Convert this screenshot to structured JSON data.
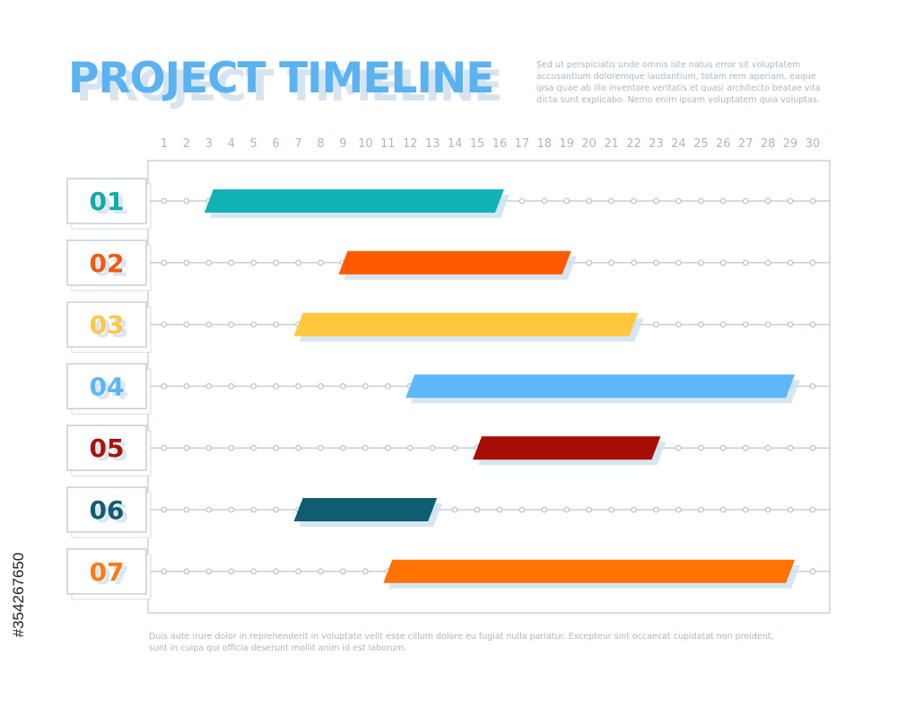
{
  "title": "PROJECT TIMELINE",
  "intro_text": "Sed ut perspiciatis unde omnis iste natus error sit voluptatem accusantium doloremque laudantium, totam rem aperiam, eaque ipsa quae ab illo inventore veritatis et quasi architecto beatae vita dicta sunt explicabo. Nemo enim ipsam voluptatem quia voluptas.",
  "footer_text": "Duis aute irure dolor in reprehenderit in voluptate velit esse cillum dolore eu fugiat nulla pariatur. Excepteur sint occaecat cupidatat non proident, sunt in culpa qui officia deserunt mollit anim id est laborum.",
  "stock_id": "#354267650",
  "chart_data": {
    "type": "bar",
    "orientation": "gantt",
    "x": [
      1,
      2,
      3,
      4,
      5,
      6,
      7,
      8,
      9,
      10,
      11,
      12,
      13,
      14,
      15,
      16,
      17,
      18,
      19,
      20,
      21,
      22,
      23,
      24,
      25,
      26,
      27,
      28,
      29,
      30
    ],
    "xlim": [
      1,
      30
    ],
    "tick_labels": [
      "1",
      "2",
      "3",
      "4",
      "5",
      "6",
      "7",
      "8",
      "9",
      "10",
      "11",
      "12",
      "13",
      "14",
      "15",
      "16",
      "17",
      "18",
      "19",
      "20",
      "21",
      "22",
      "23",
      "24",
      "25",
      "26",
      "27",
      "28",
      "29",
      "30"
    ],
    "series": [
      {
        "label": "01",
        "start": 3,
        "end": 16,
        "color": "#13b2b4",
        "label_color": "#13aaa8"
      },
      {
        "label": "02",
        "start": 9,
        "end": 19,
        "color": "#ff5a00",
        "label_color": "#f05a12"
      },
      {
        "label": "03",
        "start": 7,
        "end": 22,
        "color": "#ffc73d",
        "label_color": "#fcc74a"
      },
      {
        "label": "04",
        "start": 12,
        "end": 29,
        "color": "#5cb8f8",
        "label_color": "#5cb6f4"
      },
      {
        "label": "05",
        "start": 15,
        "end": 23,
        "color": "#a60e05",
        "label_color": "#a8150c"
      },
      {
        "label": "06",
        "start": 7,
        "end": 13,
        "color": "#0f5d72",
        "label_color": "#135c70"
      },
      {
        "label": "07",
        "start": 11,
        "end": 29,
        "color": "#ff7204",
        "label_color": "#ff7b16"
      }
    ]
  }
}
